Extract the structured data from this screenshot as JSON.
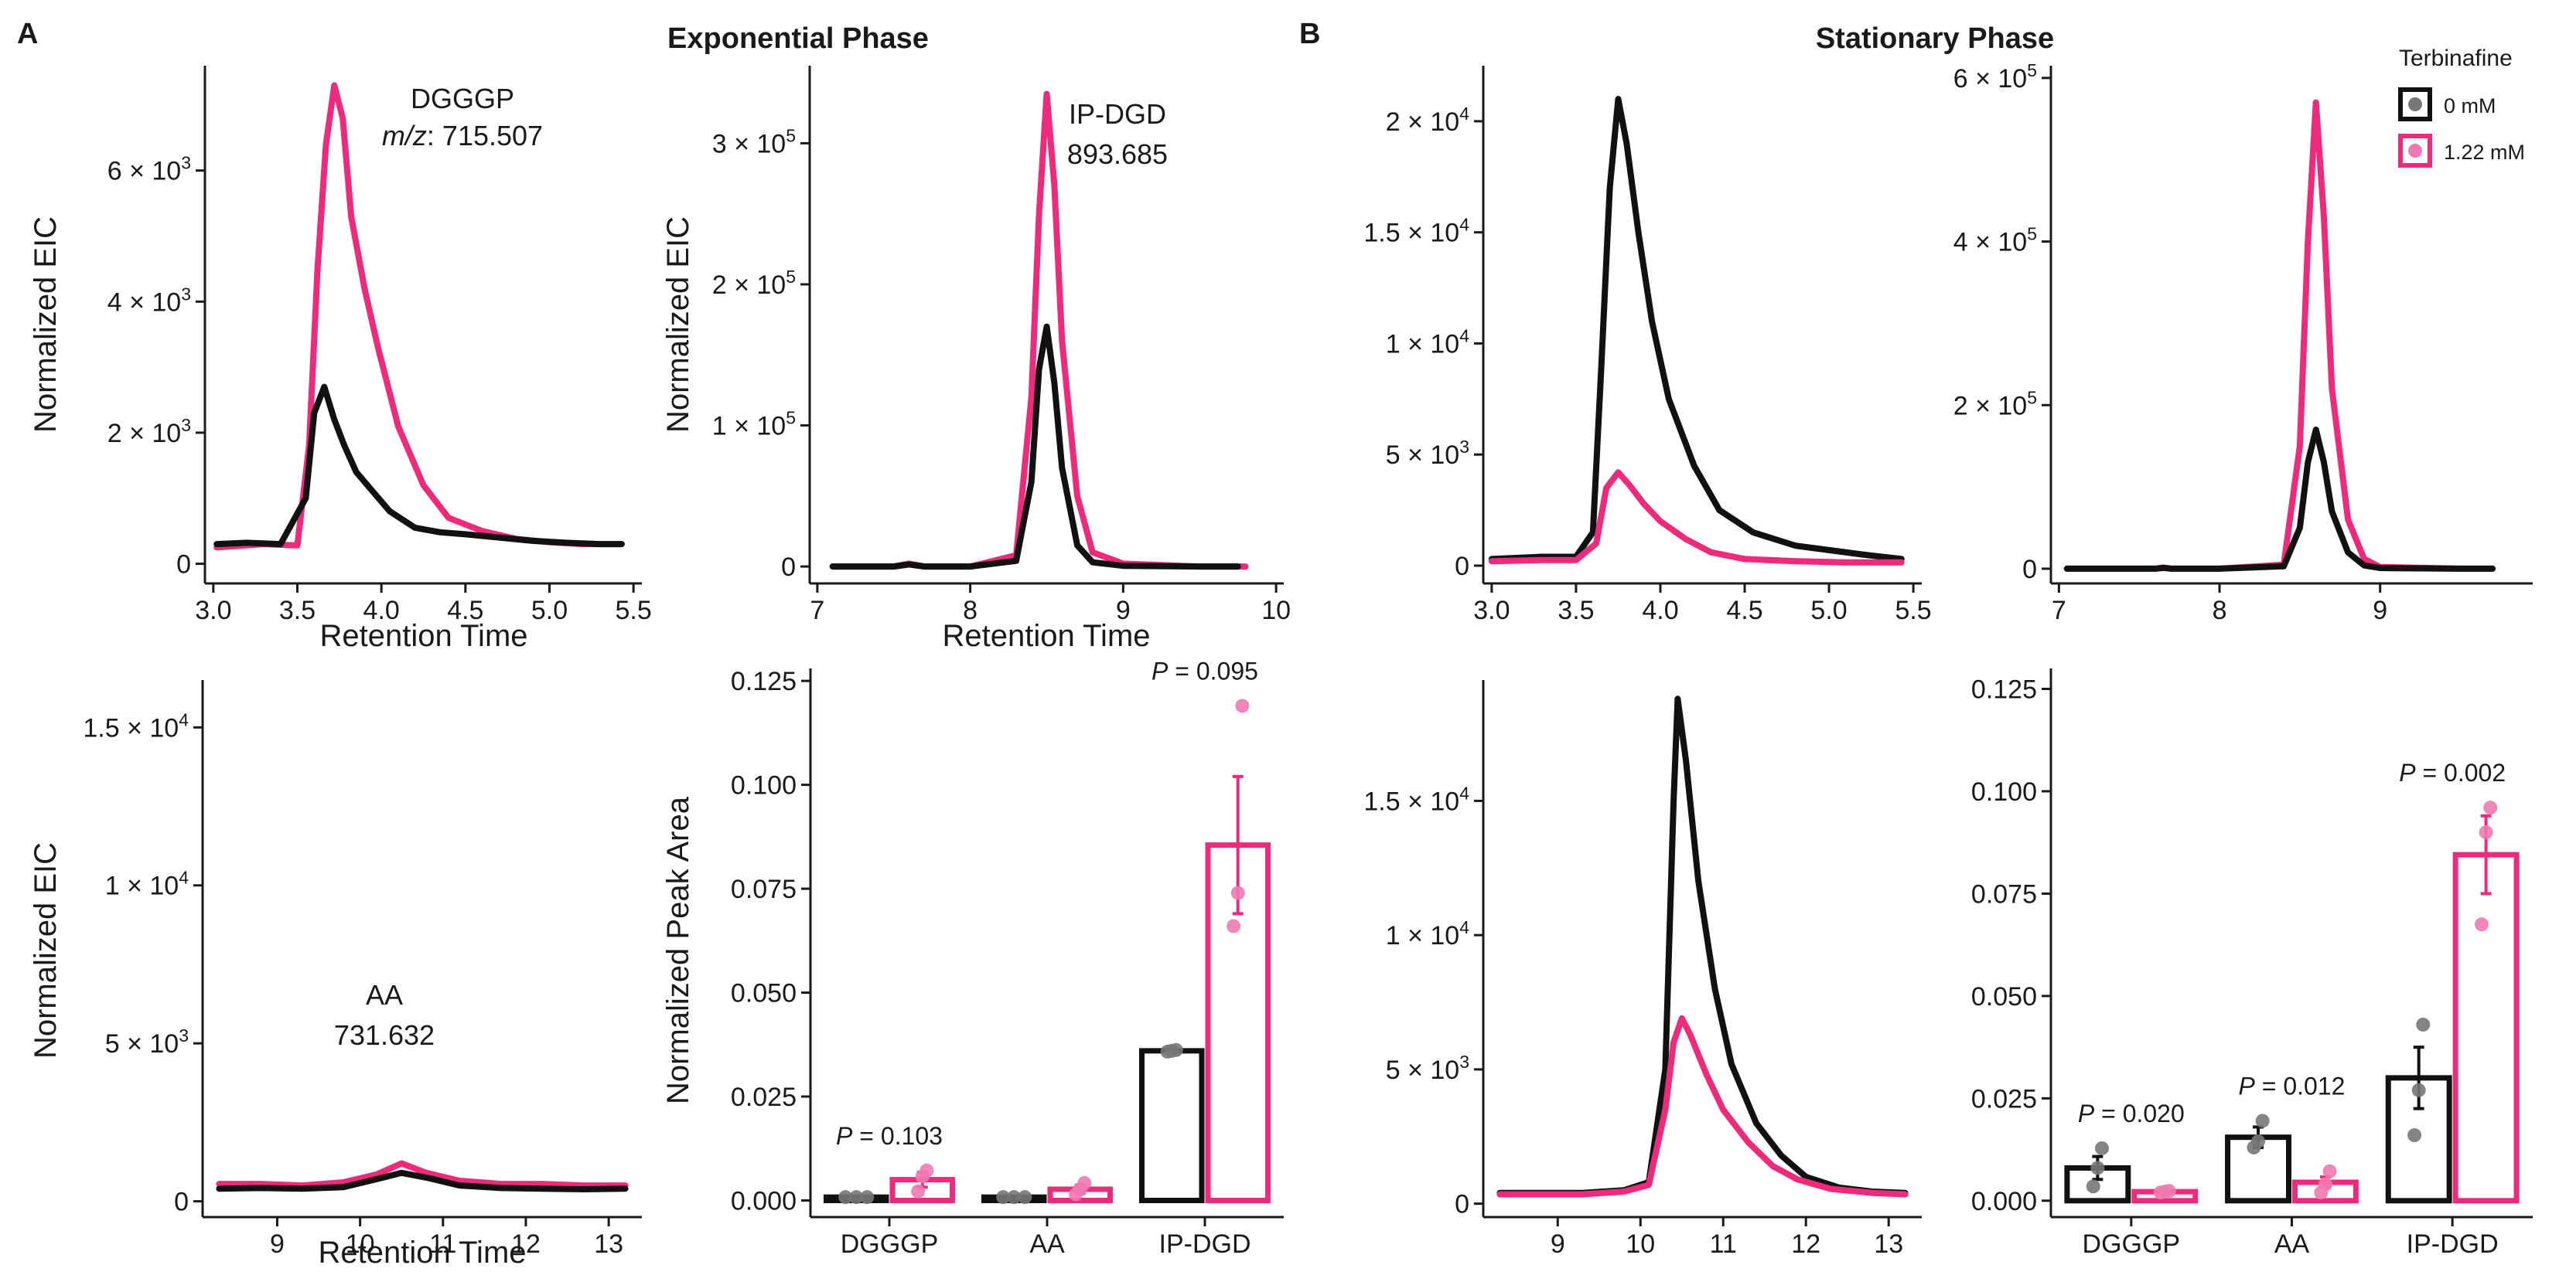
{
  "figure": {
    "panel_a": {
      "letter": "A",
      "title": "Exponential Phase"
    },
    "panel_b": {
      "letter": "B",
      "title": "Stationary Phase"
    },
    "legend": {
      "title": "Terbinafine",
      "entries": [
        {
          "label": "0 mM",
          "color": "#111111"
        },
        {
          "label": "1.22 mM",
          "color": "#ee2a7b"
        }
      ]
    }
  },
  "colors": {
    "control": "#111111",
    "terbinafine": "#ee2a7b",
    "control_point": "#777777",
    "terbinafine_point": "#f07ab0"
  },
  "chart_data": [
    {
      "id": "a_dgggp",
      "type": "line",
      "panel": "A",
      "annotation": [
        "DGGGP",
        "m/z: 715.507"
      ],
      "xlabel": "Retention Time",
      "ylabel": "Normalized EIC",
      "xlim": [
        2.95,
        5.55
      ],
      "ylim": [
        -300,
        7600
      ],
      "xticks": [
        3.0,
        3.5,
        4.0,
        4.5,
        5.0,
        5.5
      ],
      "xtick_labels": [
        "3.0",
        "3.5",
        "4.0",
        "4.5",
        "5.0",
        "5.5"
      ],
      "yticks": [
        0,
        2000,
        4000,
        6000
      ],
      "ytick_labels": [
        "0",
        "2 × 10^3",
        "4 × 10^3",
        "6 × 10^3"
      ],
      "series": [
        {
          "name": "1.22 mM",
          "color": "#ee2a7b",
          "x": [
            3.02,
            3.3,
            3.5,
            3.57,
            3.62,
            3.67,
            3.72,
            3.77,
            3.82,
            3.9,
            3.98,
            4.1,
            4.25,
            4.4,
            4.6,
            4.8,
            5.0,
            5.2,
            5.43
          ],
          "y": [
            250,
            300,
            280,
            1800,
            4500,
            6400,
            7300,
            6800,
            5300,
            4200,
            3300,
            2100,
            1200,
            700,
            500,
            380,
            330,
            300,
            300
          ]
        },
        {
          "name": "0 mM",
          "color": "#111111",
          "x": [
            3.02,
            3.2,
            3.4,
            3.55,
            3.6,
            3.66,
            3.72,
            3.78,
            3.85,
            3.95,
            4.05,
            4.2,
            4.35,
            4.5,
            4.7,
            4.9,
            5.1,
            5.3,
            5.43
          ],
          "y": [
            300,
            320,
            300,
            1000,
            2300,
            2700,
            2200,
            1800,
            1400,
            1100,
            800,
            550,
            480,
            450,
            400,
            350,
            320,
            300,
            300
          ]
        }
      ]
    },
    {
      "id": "a_ipdgd",
      "type": "line",
      "panel": "A",
      "annotation": [
        "IP-DGD",
        "893.685"
      ],
      "xlabel": "Retention Time",
      "ylabel": "Normalized EIC",
      "xlim": [
        6.95,
        10.05
      ],
      "ylim": [
        -12000,
        355000
      ],
      "xticks": [
        7,
        8,
        9,
        10
      ],
      "xtick_labels": [
        "7",
        "8",
        "9",
        "10"
      ],
      "yticks": [
        0,
        100000,
        200000,
        300000
      ],
      "ytick_labels": [
        "0",
        "1 × 10^5",
        "2 × 10^5",
        "3 × 10^5"
      ],
      "series": [
        {
          "name": "1.22 mM",
          "color": "#ee2a7b",
          "x": [
            7.1,
            7.5,
            7.6,
            7.7,
            8.0,
            8.3,
            8.4,
            8.45,
            8.5,
            8.55,
            8.6,
            8.7,
            8.8,
            9.0,
            9.5,
            9.8
          ],
          "y": [
            0,
            0,
            2000,
            0,
            0,
            8000,
            120000,
            250000,
            335000,
            270000,
            160000,
            50000,
            10000,
            2000,
            0,
            0
          ]
        },
        {
          "name": "0 mM",
          "color": "#111111",
          "x": [
            7.1,
            7.5,
            7.6,
            7.7,
            8.0,
            8.3,
            8.4,
            8.45,
            8.5,
            8.55,
            8.6,
            8.7,
            8.8,
            9.0,
            9.5,
            9.75
          ],
          "y": [
            0,
            0,
            1500,
            0,
            0,
            4000,
            60000,
            140000,
            170000,
            130000,
            70000,
            15000,
            3000,
            500,
            0,
            0
          ]
        }
      ]
    },
    {
      "id": "a_aa",
      "type": "line",
      "panel": "A",
      "annotation": [
        "AA",
        "731.632"
      ],
      "xlabel": "Retention Time",
      "ylabel": "Normalized EIC",
      "xlim": [
        8.1,
        13.4
      ],
      "ylim": [
        -500,
        16500
      ],
      "xticks": [
        9,
        10,
        11,
        12,
        13
      ],
      "xtick_labels": [
        "9",
        "10",
        "11",
        "12",
        "13"
      ],
      "yticks": [
        0,
        5000,
        10000,
        15000
      ],
      "ytick_labels": [
        "0",
        "5 × 10^3",
        "1 × 10^4",
        "1.5 × 10^4"
      ],
      "series": [
        {
          "name": "1.22 mM",
          "color": "#ee2a7b",
          "x": [
            8.3,
            8.8,
            9.3,
            9.8,
            10.2,
            10.5,
            10.8,
            11.2,
            11.7,
            12.2,
            12.7,
            13.2
          ],
          "y": [
            550,
            550,
            500,
            600,
            850,
            1200,
            900,
            650,
            550,
            550,
            500,
            500
          ]
        },
        {
          "name": "0 mM",
          "color": "#111111",
          "x": [
            8.3,
            8.8,
            9.3,
            9.8,
            10.2,
            10.5,
            10.8,
            11.2,
            11.7,
            12.2,
            12.7,
            13.2
          ],
          "y": [
            400,
            420,
            400,
            450,
            700,
            900,
            750,
            500,
            420,
            400,
            380,
            400
          ]
        }
      ]
    },
    {
      "id": "a_peak_area",
      "type": "bar",
      "panel": "A",
      "ylabel": "Normalized Peak Area",
      "categories": [
        "DGGGP",
        "AA",
        "IP-DGD"
      ],
      "ylim": [
        -0.004,
        0.128
      ],
      "yticks": [
        0,
        0.025,
        0.05,
        0.075,
        0.1,
        0.125
      ],
      "ytick_labels": [
        "0.000",
        "0.025",
        "0.050",
        "0.075",
        "0.100",
        "0.125"
      ],
      "p_values": [
        {
          "category": "DGGGP",
          "text": "P = 0.103"
        },
        {
          "category": "IP-DGD",
          "text": "P = 0.095"
        }
      ],
      "series": [
        {
          "name": "0 mM",
          "color": "#111111",
          "values": [
            0.0008,
            0.0008,
            0.036
          ],
          "errors": [
            0.0002,
            0.0002,
            0.0004
          ],
          "points": [
            [
              0.0008,
              0.0008,
              0.0008
            ],
            [
              0.0008,
              0.0008,
              0.0008
            ],
            [
              0.0358,
              0.036,
              0.0362
            ]
          ]
        },
        {
          "name": "1.22 mM",
          "color": "#ee2a7b",
          "values": [
            0.005,
            0.0027,
            0.0855
          ],
          "errors": [
            0.0018,
            0.001,
            0.0165
          ],
          "points": [
            [
              0.0022,
              0.0058,
              0.0072
            ],
            [
              0.0015,
              0.0027,
              0.0042
            ],
            [
              0.066,
              0.074,
              0.119
            ]
          ]
        }
      ]
    },
    {
      "id": "b_dgggp",
      "type": "line",
      "panel": "B",
      "xlabel": "",
      "ylabel": "",
      "xlim": [
        2.95,
        5.55
      ],
      "ylim": [
        -800,
        22500
      ],
      "xticks": [
        3.0,
        3.5,
        4.0,
        4.5,
        5.0,
        5.5
      ],
      "xtick_labels": [
        "3.0",
        "3.5",
        "4.0",
        "4.5",
        "5.0",
        "5.5"
      ],
      "yticks": [
        0,
        5000,
        10000,
        15000,
        20000
      ],
      "ytick_labels": [
        "0",
        "5 × 10^3",
        "1 × 10^4",
        "1.5 × 10^4",
        "2 × 10^4"
      ],
      "series": [
        {
          "name": "0 mM",
          "color": "#111111",
          "x": [
            3.0,
            3.3,
            3.5,
            3.6,
            3.65,
            3.7,
            3.75,
            3.8,
            3.87,
            3.95,
            4.05,
            4.2,
            4.35,
            4.55,
            4.8,
            5.0,
            5.2,
            5.43
          ],
          "y": [
            300,
            400,
            400,
            1500,
            9000,
            17000,
            21000,
            19000,
            15000,
            11000,
            7500,
            4500,
            2500,
            1500,
            900,
            700,
            500,
            300
          ]
        },
        {
          "name": "1.22 mM",
          "color": "#ee2a7b",
          "x": [
            3.0,
            3.3,
            3.5,
            3.62,
            3.68,
            3.75,
            3.82,
            3.9,
            4.0,
            4.15,
            4.3,
            4.5,
            4.8,
            5.1,
            5.43
          ],
          "y": [
            200,
            250,
            250,
            1000,
            3500,
            4200,
            3600,
            2800,
            2000,
            1200,
            600,
            300,
            200,
            150,
            150
          ]
        }
      ]
    },
    {
      "id": "b_ipdgd",
      "type": "line",
      "panel": "B",
      "xlabel": "",
      "ylabel": "",
      "xlim": [
        6.95,
        9.95
      ],
      "ylim": [
        -18000,
        615000
      ],
      "xticks": [
        7,
        8,
        9
      ],
      "xtick_labels": [
        "7",
        "8",
        "9"
      ],
      "yticks": [
        0,
        200000,
        400000,
        600000
      ],
      "ytick_labels": [
        "0",
        "2 × 10^5",
        "4 × 10^5",
        "6 × 10^5"
      ],
      "series": [
        {
          "name": "1.22 mM",
          "color": "#ee2a7b",
          "x": [
            7.05,
            7.6,
            7.65,
            7.7,
            8.0,
            8.4,
            8.5,
            8.55,
            8.6,
            8.65,
            8.7,
            8.8,
            8.9,
            9.0,
            9.5,
            9.7
          ],
          "y": [
            0,
            0,
            1500,
            0,
            0,
            5000,
            150000,
            400000,
            570000,
            430000,
            220000,
            60000,
            12000,
            2000,
            0,
            0
          ]
        },
        {
          "name": "0 mM",
          "color": "#111111",
          "x": [
            7.05,
            7.6,
            7.65,
            7.7,
            8.0,
            8.4,
            8.5,
            8.55,
            8.6,
            8.65,
            8.7,
            8.8,
            8.9,
            9.0,
            9.5,
            9.7
          ],
          "y": [
            0,
            0,
            1000,
            0,
            0,
            3000,
            50000,
            130000,
            170000,
            130000,
            70000,
            20000,
            4000,
            800,
            0,
            0
          ]
        }
      ]
    },
    {
      "id": "b_aa",
      "type": "line",
      "panel": "B",
      "xlabel": "",
      "ylabel": "",
      "xlim": [
        8.1,
        13.4
      ],
      "ylim": [
        -500,
        19500
      ],
      "xticks": [
        9,
        10,
        11,
        12,
        13
      ],
      "xtick_labels": [
        "9",
        "10",
        "11",
        "12",
        "13"
      ],
      "yticks": [
        0,
        5000,
        10000,
        15000
      ],
      "ytick_labels": [
        "0",
        "5 × 10^3",
        "1 × 10^4",
        "1.5 × 10^4"
      ],
      "series": [
        {
          "name": "0 mM",
          "color": "#111111",
          "x": [
            8.3,
            8.8,
            9.3,
            9.8,
            10.1,
            10.3,
            10.4,
            10.45,
            10.55,
            10.7,
            10.9,
            11.1,
            11.4,
            11.7,
            12.0,
            12.4,
            12.8,
            13.2
          ],
          "y": [
            400,
            400,
            400,
            500,
            800,
            5000,
            15000,
            18800,
            16500,
            12000,
            8000,
            5200,
            3000,
            1800,
            1000,
            600,
            450,
            400
          ]
        },
        {
          "name": "1.22 mM",
          "color": "#ee2a7b",
          "x": [
            8.3,
            8.8,
            9.3,
            9.8,
            10.1,
            10.3,
            10.4,
            10.5,
            10.6,
            10.8,
            11.0,
            11.3,
            11.6,
            11.9,
            12.3,
            12.8,
            13.2
          ],
          "y": [
            350,
            350,
            350,
            450,
            700,
            3500,
            6000,
            6900,
            6300,
            4800,
            3500,
            2300,
            1400,
            900,
            550,
            400,
            350
          ]
        }
      ]
    },
    {
      "id": "b_peak_area",
      "type": "bar",
      "panel": "B",
      "ylabel": "",
      "categories": [
        "DGGGP",
        "AA",
        "IP-DGD"
      ],
      "ylim": [
        -0.004,
        0.13
      ],
      "yticks": [
        0,
        0.025,
        0.05,
        0.075,
        0.1,
        0.125
      ],
      "ytick_labels": [
        "0.000",
        "0.025",
        "0.050",
        "0.075",
        "0.100",
        "0.125"
      ],
      "p_values": [
        {
          "category": "DGGGP",
          "text": "P = 0.020"
        },
        {
          "category": "AA",
          "text": "P = 0.012"
        },
        {
          "category": "IP-DGD",
          "text": "P = 0.002"
        }
      ],
      "series": [
        {
          "name": "0 mM",
          "color": "#111111",
          "values": [
            0.008,
            0.0155,
            0.03
          ],
          "errors": [
            0.0028,
            0.0025,
            0.0075
          ],
          "points": [
            [
              0.0035,
              0.008,
              0.0128
            ],
            [
              0.013,
              0.0145,
              0.0195
            ],
            [
              0.016,
              0.027,
              0.043
            ]
          ]
        },
        {
          "name": "1.22 mM",
          "color": "#ee2a7b",
          "values": [
            0.0022,
            0.0045,
            0.0845
          ],
          "errors": [
            0.0003,
            0.0013,
            0.0095
          ],
          "points": [
            [
              0.002,
              0.0022,
              0.0024
            ],
            [
              0.002,
              0.004,
              0.0072
            ],
            [
              0.0675,
              0.09,
              0.096
            ]
          ]
        }
      ]
    }
  ]
}
